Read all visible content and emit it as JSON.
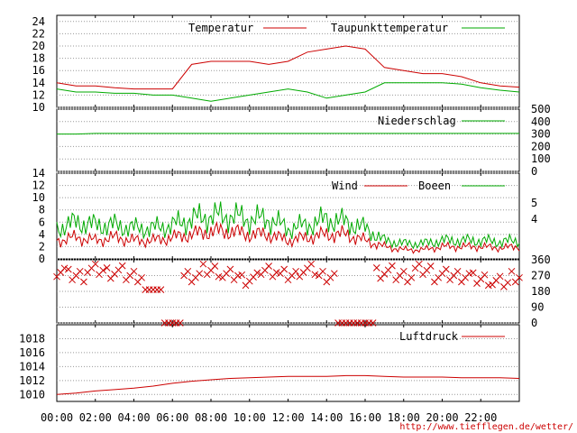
{
  "colors": {
    "primary": "#cc0000",
    "secondary": "#00aa00",
    "grid": "#999999",
    "axis": "#000000"
  },
  "url_text": "http://www.tiefflegen.de/wetter/",
  "x_ticks": [
    "00:00",
    "02:00",
    "04:00",
    "06:00",
    "08:00",
    "10:00",
    "12:00",
    "14:00",
    "16:00",
    "18:00",
    "20:00",
    "22:00"
  ],
  "chart_data": [
    {
      "type": "line",
      "title": "",
      "x": [
        "00:00",
        "01:00",
        "02:00",
        "03:00",
        "04:00",
        "05:00",
        "06:00",
        "07:00",
        "08:00",
        "09:00",
        "10:00",
        "11:00",
        "12:00",
        "13:00",
        "14:00",
        "15:00",
        "16:00",
        "17:00",
        "18:00",
        "19:00",
        "20:00",
        "21:00",
        "22:00",
        "23:00",
        "24:00"
      ],
      "ylim": [
        10,
        25
      ],
      "y_ticks": [
        "10",
        "12",
        "14",
        "16",
        "18",
        "20",
        "22",
        "24"
      ],
      "series": [
        {
          "name": "Temperatur",
          "values": [
            14,
            13.5,
            13.5,
            13.2,
            13,
            13,
            13,
            17,
            17.5,
            17.5,
            17.5,
            17,
            17.5,
            19,
            19.5,
            20,
            19.5,
            16.5,
            16,
            15.5,
            15.5,
            15,
            14,
            13.5,
            13.3
          ]
        },
        {
          "name": "Taupunkttemperatur",
          "values": [
            13,
            12.5,
            12.5,
            12.3,
            12.3,
            12,
            12,
            11.5,
            11,
            11.5,
            12,
            12.5,
            13,
            12.5,
            11.5,
            12,
            12.5,
            14,
            14,
            14,
            14,
            13.8,
            13.2,
            12.8,
            12.5
          ]
        }
      ]
    },
    {
      "type": "line",
      "title": "",
      "ylim": [
        0,
        500
      ],
      "y_ticks_right": [
        "0",
        "100",
        "200",
        "300",
        "400",
        "500"
      ],
      "series": [
        {
          "name": "Niederschlag",
          "values": [
            300,
            300,
            305,
            305,
            305,
            305,
            305,
            305,
            305,
            305,
            305,
            305,
            305,
            305,
            305,
            305,
            305,
            305,
            305,
            305,
            305,
            305,
            305,
            305,
            305
          ]
        }
      ]
    },
    {
      "type": "line",
      "title": "",
      "ylim": [
        0,
        14
      ],
      "y_ticks": [
        "0",
        "2",
        "4",
        "6",
        "8",
        "10",
        "12",
        "14"
      ],
      "y_ticks_right": [
        "4",
        "5"
      ],
      "series": [
        {
          "name": "Wind",
          "values": [
            3,
            3.5,
            3,
            3.5,
            3,
            3,
            3.5,
            4,
            4.5,
            4.5,
            4,
            4,
            3,
            3.5,
            4,
            4,
            3,
            2,
            1.5,
            1.5,
            2,
            2,
            2,
            1.8,
            2
          ]
        },
        {
          "name": "Boeen",
          "values": [
            5,
            6,
            5.5,
            5.5,
            5,
            5,
            5.5,
            6.5,
            7,
            7,
            6.5,
            6.5,
            5,
            5.5,
            6.5,
            6,
            5,
            3,
            2.5,
            2.5,
            3,
            3,
            3,
            2.8,
            3
          ]
        }
      ]
    },
    {
      "type": "scatter",
      "title": "",
      "ylim": [
        0,
        360
      ],
      "y_ticks_right": [
        "0",
        "90",
        "180",
        "270",
        "360"
      ],
      "series": [
        {
          "name": "",
          "values": [
            300,
            270,
            300,
            290,
            270,
            90,
            0,
            270,
            300,
            270,
            250,
            300,
            270,
            300,
            270,
            0,
            0,
            290,
            270,
            300,
            270,
            270,
            250,
            230,
            270
          ]
        }
      ]
    },
    {
      "type": "line",
      "title": "",
      "ylim": [
        1009,
        1020
      ],
      "y_ticks": [
        "1010",
        "1012",
        "1014",
        "1016",
        "1018"
      ],
      "series": [
        {
          "name": "Luftdruck",
          "values": [
            1010,
            1010.2,
            1010.5,
            1010.7,
            1010.9,
            1011.2,
            1011.6,
            1011.9,
            1012.1,
            1012.3,
            1012.4,
            1012.5,
            1012.6,
            1012.6,
            1012.6,
            1012.7,
            1012.7,
            1012.6,
            1012.5,
            1012.5,
            1012.5,
            1012.4,
            1012.4,
            1012.4,
            1012.3
          ]
        }
      ]
    }
  ]
}
